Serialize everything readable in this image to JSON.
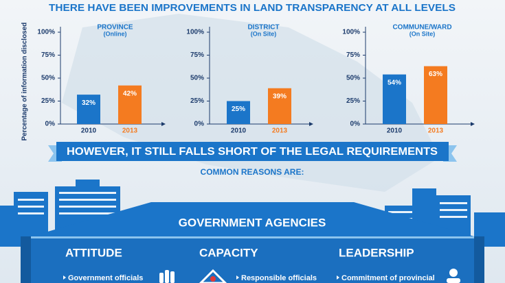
{
  "title": "THERE HAVE BEEN IMPROVEMENTS IN LAND TRANSPARENCY AT ALL LEVELS",
  "chart_data": [
    {
      "type": "bar",
      "title": "PROVINCE",
      "subtitle": "(Online)",
      "ylabel": "Percentage of information disclosed",
      "categories": [
        "2010",
        "2013"
      ],
      "values": [
        32,
        42
      ],
      "value_labels": [
        "32%",
        "42%"
      ],
      "colors": [
        "#1b75c9",
        "#f47b20"
      ],
      "ylim": [
        0,
        100
      ],
      "yticks": [
        {
          "value": 0,
          "label": "0%"
        },
        {
          "value": 25,
          "label": "25%"
        },
        {
          "value": 50,
          "label": "50%"
        },
        {
          "value": 75,
          "label": "75%"
        },
        {
          "value": 100,
          "label": "100%"
        }
      ]
    },
    {
      "type": "bar",
      "title": "DISTRICT",
      "subtitle": "(On Site)",
      "categories": [
        "2010",
        "2013"
      ],
      "values": [
        25,
        39
      ],
      "value_labels": [
        "25%",
        "39%"
      ],
      "colors": [
        "#1b75c9",
        "#f47b20"
      ],
      "ylim": [
        0,
        100
      ],
      "yticks": [
        {
          "value": 0,
          "label": "0%"
        },
        {
          "value": 25,
          "label": "25%"
        },
        {
          "value": 50,
          "label": "50%"
        },
        {
          "value": 75,
          "label": "75%"
        },
        {
          "value": 100,
          "label": "100%"
        }
      ]
    },
    {
      "type": "bar",
      "title": "COMMUNE/WARD",
      "subtitle": "(On Site)",
      "categories": [
        "2010",
        "2013"
      ],
      "values": [
        54,
        63
      ],
      "value_labels": [
        "54%",
        "63%"
      ],
      "colors": [
        "#1b75c9",
        "#f47b20"
      ],
      "ylim": [
        0,
        100
      ],
      "yticks": [
        {
          "value": 0,
          "label": "0%"
        },
        {
          "value": 25,
          "label": "25%"
        },
        {
          "value": 50,
          "label": "50%"
        },
        {
          "value": 75,
          "label": "75%"
        },
        {
          "value": 100,
          "label": "100%"
        }
      ]
    }
  ],
  "banner": "HOWEVER, IT STILL FALLS SHORT OF THE LEGAL REQUIREMENTS",
  "reasons_heading": "COMMON REASONS ARE:",
  "agencies": "GOVERNMENT AGENCIES",
  "columns": [
    {
      "heading": "ATTITUDE",
      "text": "Government officials"
    },
    {
      "heading": "CAPACITY",
      "text": "Responsible officials"
    },
    {
      "heading": "LEADERSHIP",
      "text": "Commitment of provincial"
    }
  ]
}
